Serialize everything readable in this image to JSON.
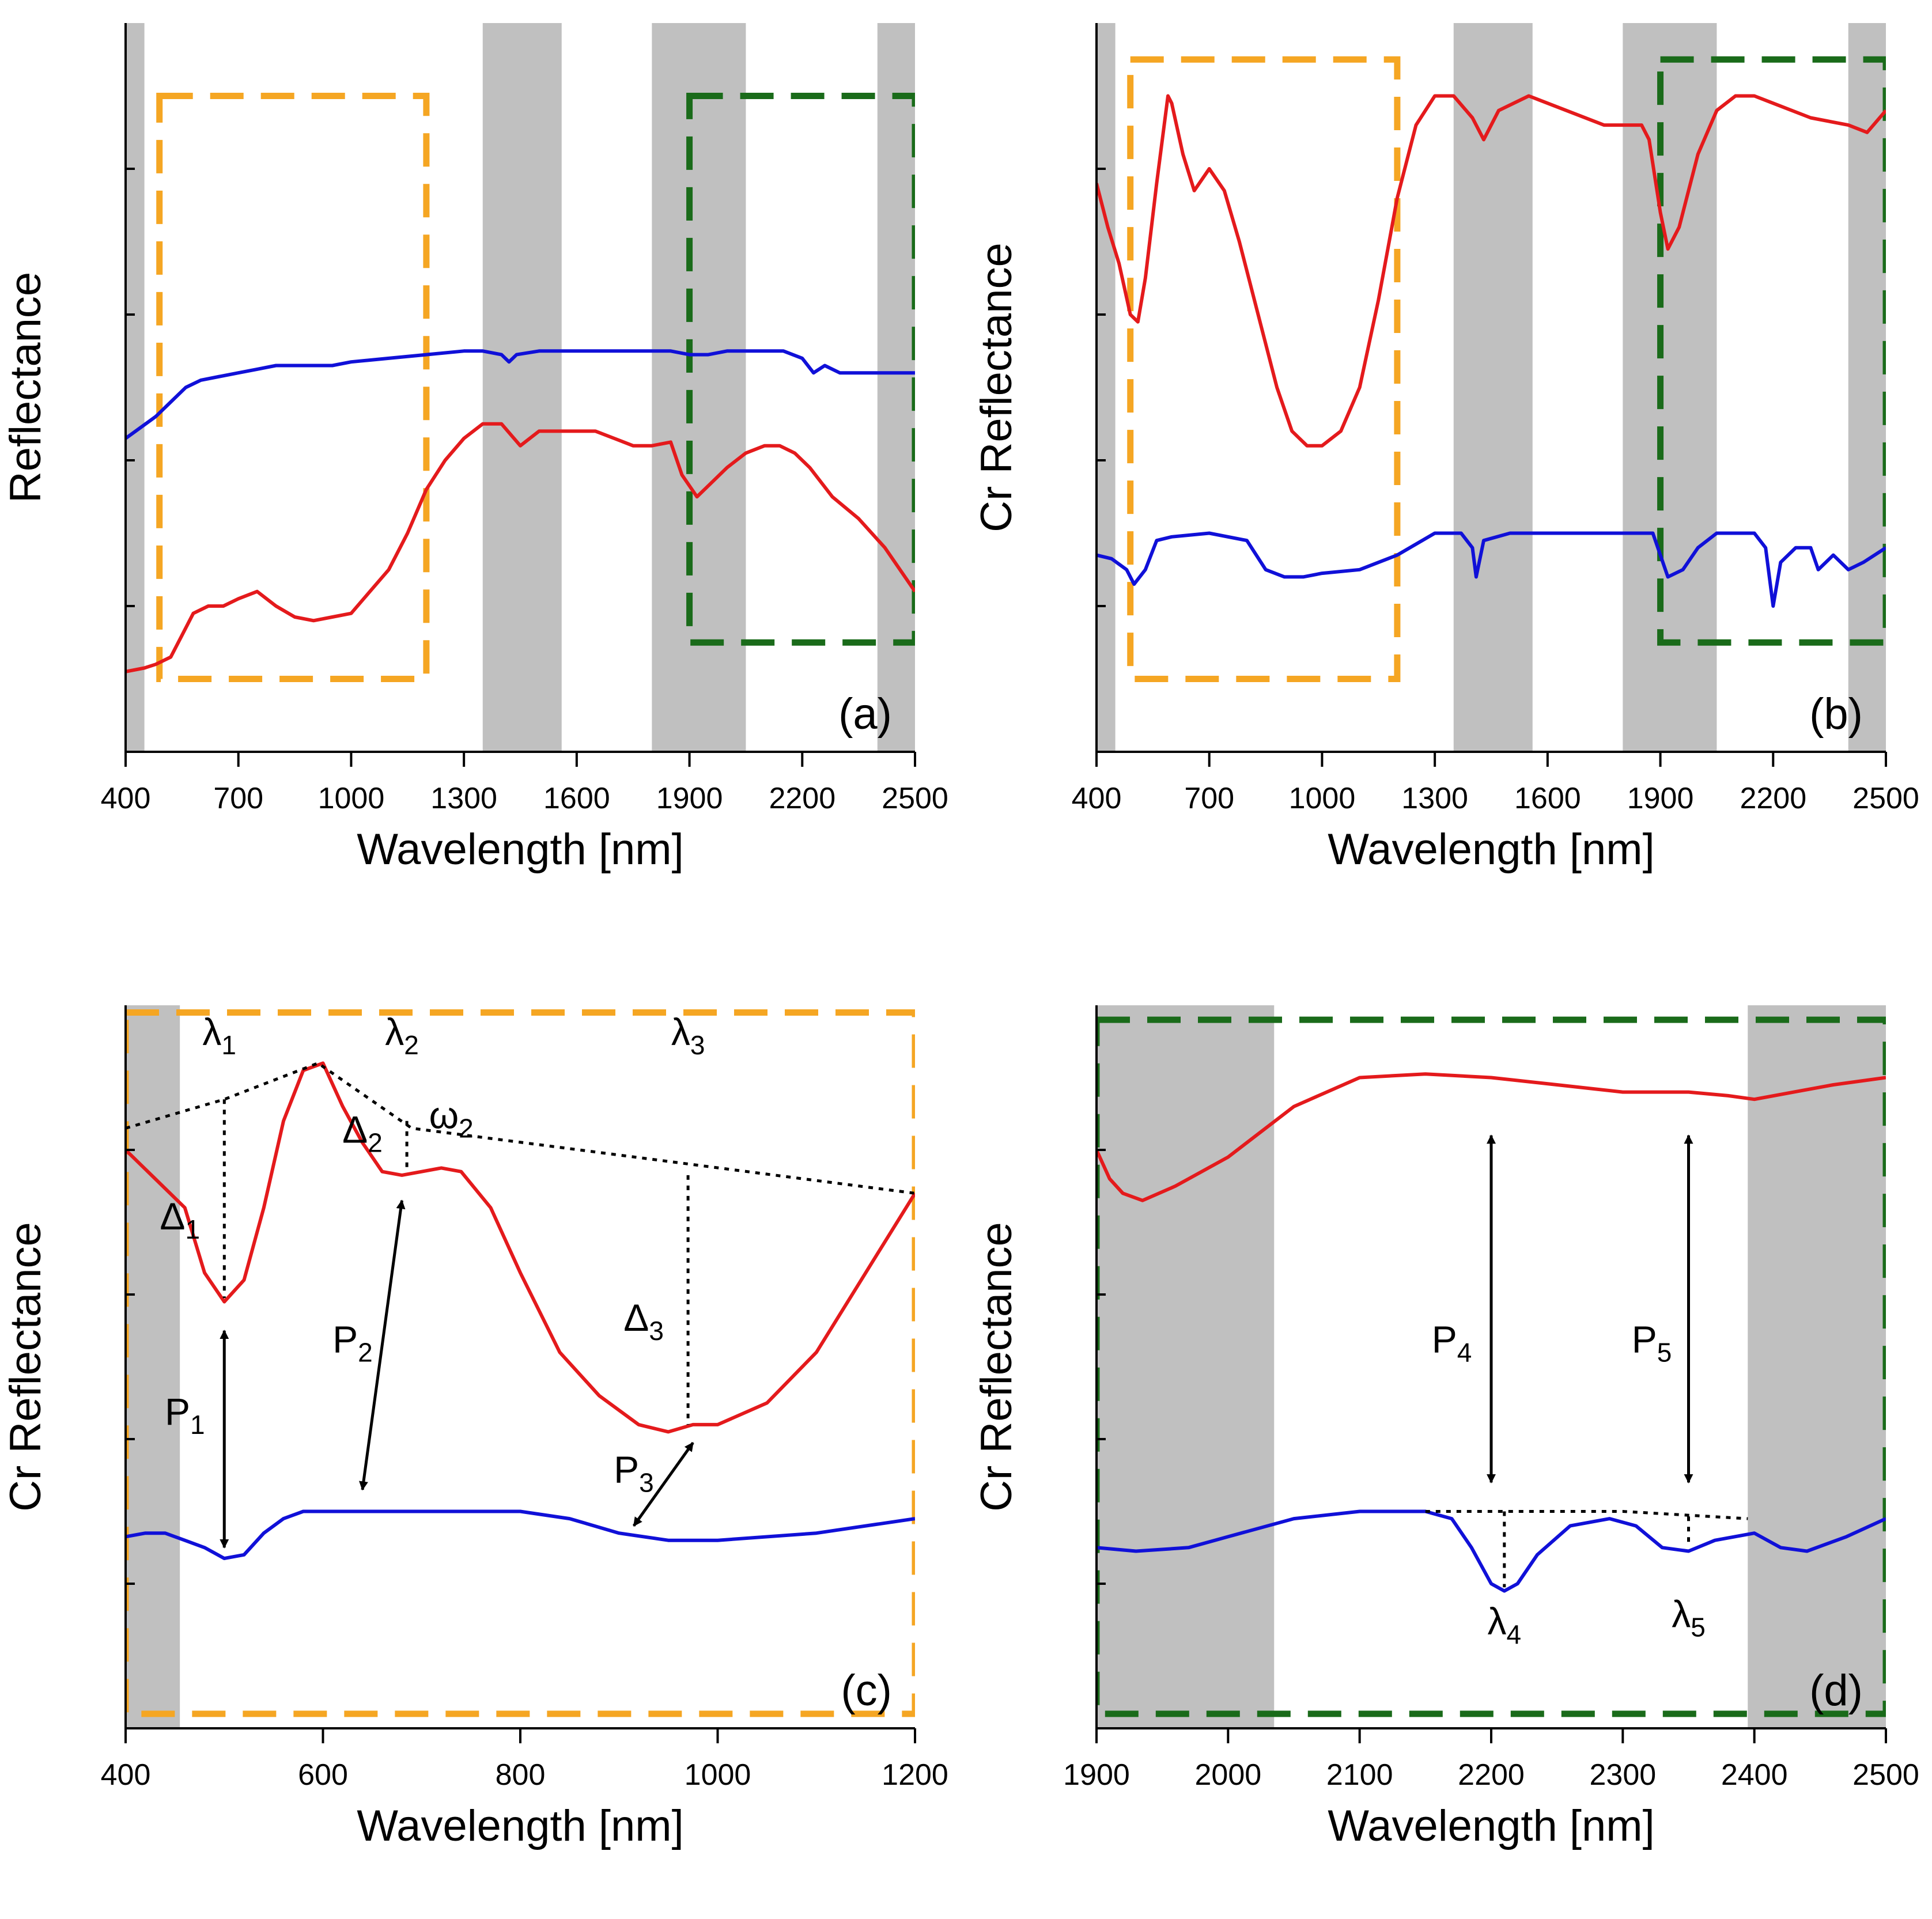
{
  "figure": {
    "colors": {
      "series_red": "#e41a1c",
      "series_blue": "#1010d8",
      "shade": "#c0c0c0",
      "box_orange": "#f5a623",
      "box_green": "#1a6b1a"
    }
  },
  "chart_data": [
    {
      "panel": "a",
      "type": "line",
      "panel_label": "(a)",
      "xlabel": "Wavelength [nm]",
      "ylabel": "Reflectance",
      "xlim": [
        400,
        2500
      ],
      "ylim": [
        0,
        1
      ],
      "xticks": [
        400,
        700,
        1000,
        1300,
        1600,
        1900,
        2200,
        2500
      ],
      "xtick_labels": [
        "400",
        "700",
        "1000",
        "1300",
        "1600",
        "1900",
        "2200",
        "2500"
      ],
      "yticks": [
        0.2,
        0.4,
        0.6,
        0.8
      ],
      "shaded_bands": [
        [
          400,
          450
        ],
        [
          1350,
          1560
        ],
        [
          1800,
          2050
        ],
        [
          2400,
          2500
        ]
      ],
      "boxes": [
        {
          "color": "orange",
          "x": [
            490,
            1200
          ],
          "y": [
            0.1,
            0.9
          ]
        },
        {
          "color": "green",
          "x": [
            1900,
            2500
          ],
          "y": [
            0.15,
            0.9
          ]
        }
      ],
      "series": [
        {
          "name": "blue",
          "color": "blue",
          "x": [
            400,
            480,
            520,
            560,
            600,
            650,
            700,
            750,
            800,
            850,
            900,
            950,
            1000,
            1100,
            1200,
            1300,
            1350,
            1400,
            1420,
            1440,
            1500,
            1600,
            1700,
            1800,
            1850,
            1900,
            1950,
            2000,
            2100,
            2150,
            2200,
            2230,
            2260,
            2300,
            2400,
            2500
          ],
          "y": [
            0.43,
            0.46,
            0.48,
            0.5,
            0.51,
            0.515,
            0.52,
            0.525,
            0.53,
            0.53,
            0.53,
            0.53,
            0.535,
            0.54,
            0.545,
            0.55,
            0.55,
            0.545,
            0.535,
            0.545,
            0.55,
            0.55,
            0.55,
            0.55,
            0.55,
            0.545,
            0.545,
            0.55,
            0.55,
            0.55,
            0.54,
            0.52,
            0.53,
            0.52,
            0.52,
            0.52
          ]
        },
        {
          "name": "red",
          "color": "red",
          "x": [
            400,
            450,
            480,
            520,
            550,
            580,
            620,
            660,
            700,
            750,
            800,
            850,
            900,
            950,
            1000,
            1050,
            1100,
            1150,
            1200,
            1250,
            1300,
            1350,
            1400,
            1450,
            1500,
            1550,
            1600,
            1650,
            1700,
            1750,
            1800,
            1850,
            1880,
            1920,
            1960,
            2000,
            2050,
            2100,
            2140,
            2180,
            2220,
            2280,
            2350,
            2420,
            2500
          ],
          "y": [
            0.11,
            0.115,
            0.12,
            0.13,
            0.16,
            0.19,
            0.2,
            0.2,
            0.21,
            0.22,
            0.2,
            0.185,
            0.18,
            0.185,
            0.19,
            0.22,
            0.25,
            0.3,
            0.36,
            0.4,
            0.43,
            0.45,
            0.45,
            0.42,
            0.44,
            0.44,
            0.44,
            0.44,
            0.43,
            0.42,
            0.42,
            0.425,
            0.38,
            0.35,
            0.37,
            0.39,
            0.41,
            0.42,
            0.42,
            0.41,
            0.39,
            0.35,
            0.32,
            0.28,
            0.22
          ]
        }
      ]
    },
    {
      "panel": "b",
      "type": "line",
      "panel_label": "(b)",
      "xlabel": "Wavelength [nm]",
      "ylabel": "Cr Reflectance",
      "xlim": [
        400,
        2500
      ],
      "ylim": [
        0,
        1
      ],
      "xticks": [
        400,
        700,
        1000,
        1300,
        1600,
        1900,
        2200,
        2500
      ],
      "xtick_labels": [
        "400",
        "700",
        "1000",
        "1300",
        "1600",
        "1900",
        "2200",
        "2500"
      ],
      "yticks": [
        0.2,
        0.4,
        0.6,
        0.8
      ],
      "shaded_bands": [
        [
          400,
          450
        ],
        [
          1350,
          1560
        ],
        [
          1800,
          2050
        ],
        [
          2400,
          2500
        ]
      ],
      "boxes": [
        {
          "color": "orange",
          "x": [
            490,
            1200
          ],
          "y": [
            0.1,
            0.95
          ]
        },
        {
          "color": "green",
          "x": [
            1900,
            2500
          ],
          "y": [
            0.15,
            0.95
          ]
        }
      ],
      "series": [
        {
          "name": "red",
          "color": "red",
          "x": [
            400,
            430,
            460,
            490,
            510,
            530,
            560,
            590,
            600,
            630,
            660,
            700,
            740,
            780,
            830,
            880,
            920,
            960,
            1000,
            1050,
            1100,
            1150,
            1200,
            1250,
            1300,
            1350,
            1400,
            1430,
            1470,
            1550,
            1650,
            1750,
            1800,
            1850,
            1870,
            1900,
            1920,
            1950,
            2000,
            2050,
            2100,
            2150,
            2200,
            2300,
            2400,
            2450,
            2500
          ],
          "y": [
            0.78,
            0.72,
            0.67,
            0.6,
            0.59,
            0.65,
            0.78,
            0.9,
            0.89,
            0.82,
            0.77,
            0.8,
            0.77,
            0.7,
            0.6,
            0.5,
            0.44,
            0.42,
            0.42,
            0.44,
            0.5,
            0.62,
            0.76,
            0.86,
            0.9,
            0.9,
            0.87,
            0.84,
            0.88,
            0.9,
            0.88,
            0.86,
            0.86,
            0.86,
            0.84,
            0.74,
            0.69,
            0.72,
            0.82,
            0.88,
            0.9,
            0.9,
            0.89,
            0.87,
            0.86,
            0.85,
            0.88
          ]
        },
        {
          "name": "blue",
          "color": "blue",
          "x": [
            400,
            440,
            480,
            500,
            530,
            560,
            600,
            700,
            800,
            850,
            900,
            950,
            1000,
            1100,
            1200,
            1300,
            1370,
            1400,
            1410,
            1430,
            1500,
            1600,
            1700,
            1800,
            1880,
            1920,
            1960,
            2000,
            2050,
            2100,
            2150,
            2180,
            2200,
            2220,
            2260,
            2300,
            2320,
            2360,
            2400,
            2440,
            2500
          ],
          "y": [
            0.27,
            0.265,
            0.25,
            0.23,
            0.25,
            0.29,
            0.295,
            0.3,
            0.29,
            0.25,
            0.24,
            0.24,
            0.245,
            0.25,
            0.27,
            0.3,
            0.3,
            0.28,
            0.24,
            0.29,
            0.3,
            0.3,
            0.3,
            0.3,
            0.3,
            0.24,
            0.25,
            0.28,
            0.3,
            0.3,
            0.3,
            0.28,
            0.2,
            0.26,
            0.28,
            0.28,
            0.25,
            0.27,
            0.25,
            0.26,
            0.28
          ]
        }
      ]
    },
    {
      "panel": "c",
      "type": "line",
      "panel_label": "(c)",
      "xlabel": "Wavelength [nm]",
      "ylabel": "Cr Reflectance",
      "xlim": [
        400,
        1200
      ],
      "ylim": [
        0,
        1
      ],
      "xticks": [
        400,
        600,
        800,
        1000,
        1200
      ],
      "xtick_labels": [
        "400",
        "600",
        "800",
        "1000",
        "1200"
      ],
      "yticks": [
        0.2,
        0.4,
        0.6,
        0.8
      ],
      "shaded_bands": [
        [
          400,
          455
        ]
      ],
      "boxes": [
        {
          "color": "orange",
          "x": [
            400,
            1200
          ],
          "y": [
            0.02,
            0.99
          ]
        }
      ],
      "series": [
        {
          "name": "red",
          "color": "red",
          "x": [
            400,
            430,
            460,
            480,
            500,
            520,
            540,
            560,
            580,
            600,
            620,
            640,
            660,
            680,
            700,
            720,
            740,
            770,
            800,
            840,
            880,
            920,
            950,
            975,
            1000,
            1050,
            1100,
            1150,
            1200
          ],
          "y": [
            0.8,
            0.76,
            0.72,
            0.63,
            0.59,
            0.62,
            0.72,
            0.84,
            0.91,
            0.92,
            0.86,
            0.81,
            0.77,
            0.765,
            0.77,
            0.775,
            0.77,
            0.72,
            0.63,
            0.52,
            0.46,
            0.42,
            0.41,
            0.42,
            0.42,
            0.45,
            0.52,
            0.63,
            0.74
          ]
        },
        {
          "name": "blue",
          "color": "blue",
          "x": [
            400,
            420,
            440,
            460,
            480,
            500,
            520,
            540,
            560,
            580,
            600,
            650,
            700,
            750,
            800,
            850,
            900,
            950,
            1000,
            1100,
            1200
          ],
          "y": [
            0.265,
            0.27,
            0.27,
            0.26,
            0.25,
            0.235,
            0.24,
            0.27,
            0.29,
            0.3,
            0.3,
            0.3,
            0.3,
            0.3,
            0.3,
            0.29,
            0.27,
            0.26,
            0.26,
            0.27,
            0.29
          ]
        }
      ],
      "annotations": [
        {
          "text": "λ",
          "sub": "1",
          "x": 495,
          "y": 0.945
        },
        {
          "text": "λ",
          "sub": "2",
          "x": 680,
          "y": 0.945
        },
        {
          "text": "λ",
          "sub": "3",
          "x": 970,
          "y": 0.945
        },
        {
          "text": "Δ",
          "sub": "1",
          "x": 455,
          "y": 0.69
        },
        {
          "text": "Δ",
          "sub": "2",
          "x": 640,
          "y": 0.81
        },
        {
          "text": "ω",
          "sub": "2",
          "x": 730,
          "y": 0.83
        },
        {
          "text": "Δ",
          "sub": "3",
          "x": 925,
          "y": 0.55
        },
        {
          "text": "P",
          "sub": "1",
          "x": 460,
          "y": 0.42
        },
        {
          "text": "P",
          "sub": "2",
          "x": 630,
          "y": 0.52
        },
        {
          "text": "P",
          "sub": "3",
          "x": 915,
          "y": 0.34
        }
      ]
    },
    {
      "panel": "d",
      "type": "line",
      "panel_label": "(d)",
      "xlabel": "Wavelength [nm]",
      "ylabel": "Cr Reflectance",
      "xlim": [
        1900,
        2500
      ],
      "ylim": [
        0,
        1
      ],
      "xticks": [
        1900,
        2000,
        2100,
        2200,
        2300,
        2400,
        2500
      ],
      "xtick_labels": [
        "1900",
        "2000",
        "2100",
        "2200",
        "2300",
        "2400",
        "2500"
      ],
      "yticks": [
        0.2,
        0.4,
        0.6,
        0.8
      ],
      "shaded_bands": [
        [
          1900,
          2035
        ],
        [
          2395,
          2500
        ]
      ],
      "boxes": [
        {
          "color": "green",
          "x": [
            1900,
            2500
          ],
          "y": [
            0.02,
            0.98
          ]
        }
      ],
      "series": [
        {
          "name": "red",
          "color": "red",
          "x": [
            1900,
            1910,
            1920,
            1935,
            1960,
            2000,
            2050,
            2100,
            2150,
            2200,
            2250,
            2300,
            2350,
            2380,
            2400,
            2430,
            2460,
            2500
          ],
          "y": [
            0.8,
            0.76,
            0.74,
            0.73,
            0.75,
            0.79,
            0.86,
            0.9,
            0.905,
            0.9,
            0.89,
            0.88,
            0.88,
            0.875,
            0.87,
            0.88,
            0.89,
            0.9
          ]
        },
        {
          "name": "blue",
          "color": "blue",
          "x": [
            1900,
            1930,
            1970,
            2000,
            2050,
            2100,
            2150,
            2170,
            2185,
            2200,
            2210,
            2220,
            2235,
            2260,
            2290,
            2310,
            2330,
            2350,
            2370,
            2400,
            2420,
            2440,
            2470,
            2500
          ],
          "y": [
            0.25,
            0.245,
            0.25,
            0.265,
            0.29,
            0.3,
            0.3,
            0.29,
            0.25,
            0.2,
            0.19,
            0.2,
            0.24,
            0.28,
            0.29,
            0.28,
            0.25,
            0.245,
            0.26,
            0.27,
            0.25,
            0.245,
            0.265,
            0.29
          ]
        }
      ],
      "annotations": [
        {
          "text": "P",
          "sub": "4",
          "x": 2170,
          "y": 0.52
        },
        {
          "text": "P",
          "sub": "5",
          "x": 2322,
          "y": 0.52
        },
        {
          "text": "λ",
          "sub": "4",
          "x": 2210,
          "y": 0.13
        },
        {
          "text": "λ",
          "sub": "5",
          "x": 2350,
          "y": 0.14
        }
      ]
    }
  ]
}
